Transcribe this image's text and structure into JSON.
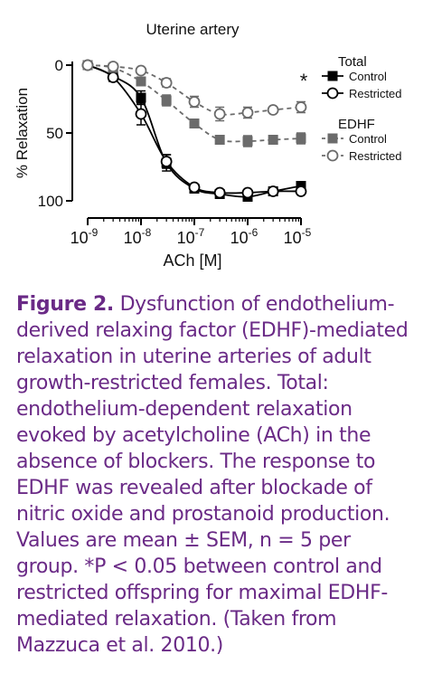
{
  "chart_data": {
    "type": "line",
    "title": "Uterine artery",
    "xlabel": "ACh [M]",
    "ylabel": "% Relaxation",
    "x_scale": "log",
    "xlim": [
      1e-09,
      1e-05
    ],
    "ylim": [
      0,
      100
    ],
    "y_inverted": true,
    "x_ticks": [
      1e-09,
      1e-08,
      1e-07,
      1e-06,
      1e-05
    ],
    "x_tick_labels": [
      {
        "base": "10",
        "exp": "-9"
      },
      {
        "base": "10",
        "exp": "-8"
      },
      {
        "base": "10",
        "exp": "-7"
      },
      {
        "base": "10",
        "exp": "-6"
      },
      {
        "base": "10",
        "exp": "-5"
      }
    ],
    "y_ticks": [
      0,
      50,
      100
    ],
    "y_tick_labels": [
      "0",
      "50",
      "100"
    ],
    "legend": [
      {
        "group": "Total",
        "items": [
          "Control",
          "Restricted"
        ]
      },
      {
        "group": "EDHF",
        "items": [
          "Control",
          "Restricted"
        ]
      }
    ],
    "annotation": "*",
    "series": [
      {
        "name": "Total Control",
        "marker": "filled-square",
        "line": "solid",
        "x": [
          1e-09,
          3e-09,
          1e-08,
          3e-08,
          1e-07,
          3e-07,
          1e-06,
          3e-06,
          1e-05
        ],
        "y": [
          0,
          8,
          24,
          72,
          91,
          95,
          97,
          93,
          89
        ],
        "err": [
          0,
          3,
          5,
          6,
          3,
          2,
          2,
          3,
          3
        ]
      },
      {
        "name": "Total Restricted",
        "marker": "open-circle",
        "line": "solid",
        "x": [
          1e-09,
          3e-09,
          1e-08,
          3e-08,
          1e-07,
          3e-07,
          1e-06,
          3e-06,
          1e-05
        ],
        "y": [
          0,
          9,
          36,
          71,
          90,
          94,
          94,
          93,
          93
        ],
        "err": [
          0,
          3,
          8,
          5,
          2,
          2,
          2,
          2,
          2
        ]
      },
      {
        "name": "EDHF Control",
        "marker": "filled-square",
        "line": "dashed",
        "x": [
          1e-09,
          3e-09,
          1e-08,
          3e-08,
          1e-07,
          3e-07,
          1e-06,
          3e-06,
          1e-05
        ],
        "y": [
          0,
          2,
          12,
          26,
          43,
          55,
          56,
          55,
          54
        ],
        "err": [
          0,
          2,
          3,
          4,
          3,
          3,
          4,
          3,
          4
        ]
      },
      {
        "name": "EDHF Restricted",
        "marker": "open-circle",
        "line": "dashed",
        "x": [
          1e-09,
          3e-09,
          1e-08,
          3e-08,
          1e-07,
          3e-07,
          1e-06,
          3e-06,
          1e-05
        ],
        "y": [
          0,
          1,
          4,
          13,
          27,
          36,
          35,
          33,
          31
        ],
        "err": [
          0,
          1,
          2,
          3,
          4,
          5,
          4,
          2,
          4
        ]
      }
    ],
    "colors": {
      "control_total": "#000000",
      "restricted_total": "#000000",
      "edhf": "#6b6b6b"
    }
  },
  "caption": {
    "label": "Figure 2.",
    "text": "Dysfunction of endothelium-derived relaxing factor (EDHF)-mediated relaxation in uterine arteries of adult growth-restricted females. Total: endothelium-dependent relaxation evoked by acetylcholine (ACh) in the absence of blockers. The response to EDHF was revealed after blockade of nitric oxide and prostanoid production. Values are mean ± SEM, n = 5 per group. *P < 0.05 between control and restricted offspring for maximal EDHF-mediated relaxation. (Taken from Mazzuca et al. 2010.)"
  }
}
